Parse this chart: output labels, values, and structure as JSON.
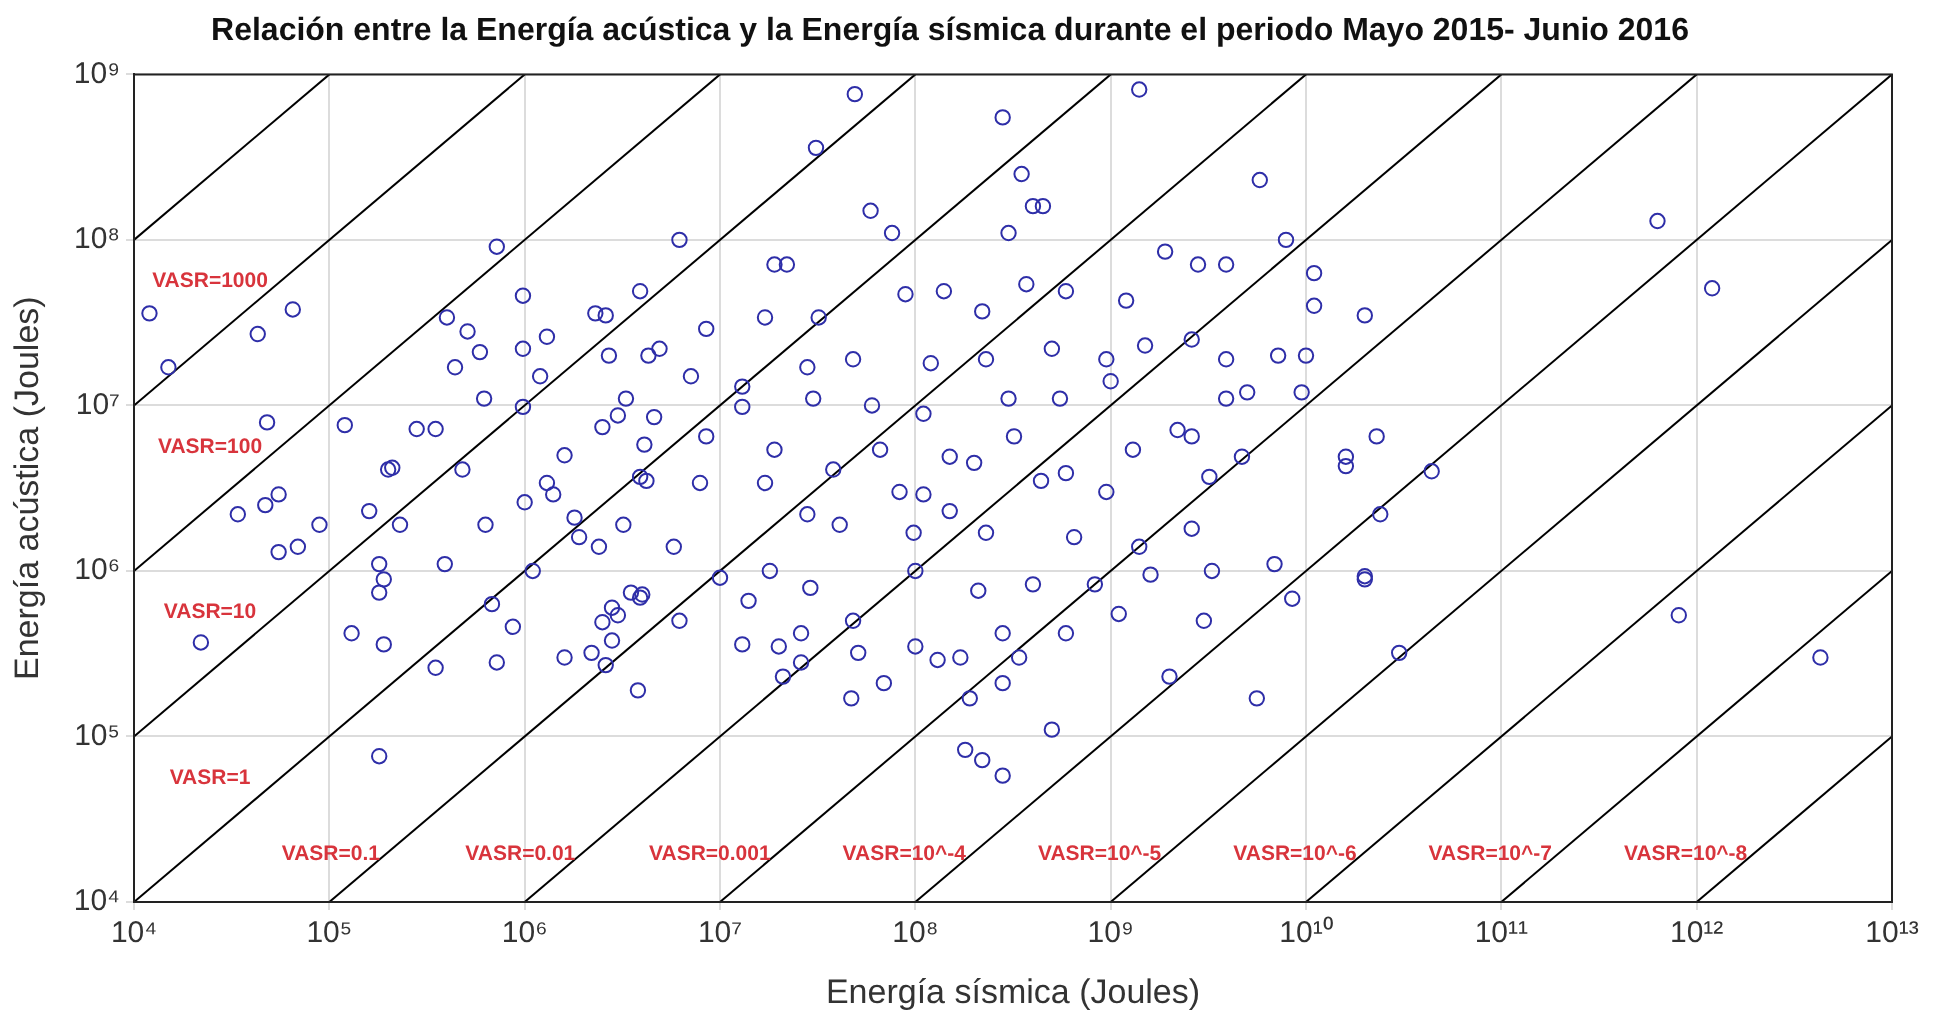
{
  "chart_data": {
    "type": "scatter",
    "title": "Relación entre la Energía acústica y la Energía sísmica durante el periodo Mayo 2015- Junio 2016",
    "xlabel": "Energía sísmica (Joules)",
    "ylabel": "Energía acústica (Joules)",
    "log": "xy",
    "grid": true,
    "xlim": [
      10000.0,
      10000000000000.0
    ],
    "ylim": [
      10000.0,
      1000000000.0
    ],
    "xticks": [
      {
        "value": 10000.0,
        "label": "10⁴"
      },
      {
        "value": 100000.0,
        "label": "10⁵"
      },
      {
        "value": 1000000.0,
        "label": "10⁶"
      },
      {
        "value": 10000000.0,
        "label": "10⁷"
      },
      {
        "value": 100000000.0,
        "label": "10⁸"
      },
      {
        "value": 1000000000.0,
        "label": "10⁹"
      },
      {
        "value": 10000000000.0,
        "label": "10¹⁰"
      },
      {
        "value": 100000000000.0,
        "label": "10¹¹"
      },
      {
        "value": 1000000000000.0,
        "label": "10¹²"
      },
      {
        "value": 10000000000000.0,
        "label": "10¹³"
      }
    ],
    "yticks": [
      {
        "value": 10000.0,
        "label": "10⁴"
      },
      {
        "value": 100000.0,
        "label": "10⁵"
      },
      {
        "value": 1000000.0,
        "label": "10⁶"
      },
      {
        "value": 10000000.0,
        "label": "10⁷"
      },
      {
        "value": 100000000.0,
        "label": "10⁸"
      },
      {
        "value": 1000000000.0,
        "label": "10⁹"
      }
    ],
    "series": [
      {
        "color": "#2e2ea8",
        "marker": "circle",
        "x": [
          12000.0,
          15000.0,
          43000.0,
          65000.0,
          48000.0,
          22000.0,
          34000.0,
          47000.0,
          55000.0,
          55000.0,
          69000.0,
          89000.0,
          120000.0,
          130000.0,
          160000.0,
          180000.0,
          180000.0,
          190000.0,
          180000.0,
          190000.0,
          200000.0,
          210000.0,
          230000.0,
          280000.0,
          350000.0,
          350000.0,
          390000.0,
          400000.0,
          440000.0,
          480000.0,
          510000.0,
          590000.0,
          620000.0,
          630000.0,
          680000.0,
          720000.0,
          720000.0,
          870000.0,
          980000.0,
          980000.0,
          980000.0,
          1000000.0,
          1100000.0,
          1200000.0,
          1300000.0,
          1300000.0,
          1400000.0,
          1600000.0,
          1600000.0,
          1800000.0,
          1900000.0,
          2200000.0,
          2300000.0,
          2400000.0,
          2500000.0,
          2500000.0,
          2600000.0,
          2600000.0,
          2700000.0,
          2800000.0,
          2800000.0,
          3000000.0,
          3000000.0,
          3300000.0,
          3500000.0,
          3200000.0,
          3800000.0,
          3900000.0,
          4000000.0,
          4100000.0,
          4200000.0,
          4300000.0,
          49000000.0,
          31000000.0,
          280000000.0,
          1400000000.0,
          350000000.0,
          5800000000.0,
          59000000.0,
          400000000.0,
          450000000.0,
          6200000.0,
          76000000.0,
          300000000.0,
          7900000000.0,
          19000000.0,
          22000000.0,
          32000000.0,
          17000000.0,
          8500000.0,
          89000000.0,
          140000000.0,
          220000000.0,
          370000000.0,
          590000000.0,
          1200000000.0,
          1900000000.0,
          2800000000.0,
          3900000000.0,
          4900000.0,
          7100000.0,
          13000000.0,
          28000000.0,
          48000000.0,
          120000000.0,
          230000000.0,
          500000000.0,
          950000000.0,
          1500000000.0,
          2600000000.0,
          3900000000.0,
          7200000000.0,
          4600000.0,
          13000000.0,
          30000000.0,
          60000000.0,
          110000000.0,
          300000000.0,
          550000000.0,
          1000000000.0,
          2200000000.0,
          3900000000.0,
          5000000000.0,
          3900000.0,
          8500000.0,
          19000000.0,
          38000000.0,
          66000000.0,
          150000000.0,
          320000000.0,
          590000000.0,
          1300000000.0,
          2600000000.0,
          4700000000.0,
          7900000.0,
          17000000.0,
          28000000.0,
          83000000.0,
          110000000.0,
          200000000.0,
          440000000.0,
          950000000.0,
          3200000000.0,
          5800000.0,
          10000000.0,
          18000000.0,
          41000000.0,
          98000000.0,
          150000000.0,
          230000000.0,
          650000000.0,
          1400000000.0,
          2600000000.0,
          3300000000.0,
          6900000000.0,
          3900000.0,
          6200000.0,
          14000000.0,
          29000000.0,
          48000000.0,
          100000000.0,
          210000000.0,
          400000000.0,
          830000000.0,
          1600000000.0,
          3000000000.0,
          13000000.0,
          20000000.0,
          26000000.0,
          51000000.0,
          100000000.0,
          130000000.0,
          170000000.0,
          280000000.0,
          340000000.0,
          590000000.0,
          1100000000.0,
          21000000.0,
          26000000.0,
          47000000.0,
          69000000.0,
          190000000.0,
          280000000.0,
          500000000.0,
          2000000000.0,
          5600000000.0,
          180000000.0,
          220000000.0,
          280000000.0,
          11000000000.0,
          11000000000.0,
          20000000000.0,
          10000000000.0,
          9500000000.0,
          23000000000.0,
          16000000000.0,
          16000000000.0,
          44000000000.0,
          24000000000.0,
          20000000000.0,
          20000000000.0,
          8500000000.0,
          30000000000.0,
          630000000000.0,
          1200000000000.0,
          810000000000.0,
          4300000000000.0
        ],
        "values": [
          36000000.0,
          17000000.0,
          27000000.0,
          38000000.0,
          7900000.0,
          370000.0,
          2200000.0,
          2500000.0,
          2900000.0,
          1300000.0,
          1400000.0,
          1900000.0,
          7600000.0,
          420000.0,
          2300000.0,
          76000.0,
          740000.0,
          890000.0,
          1100000.0,
          360000.0,
          4100000.0,
          4200000.0,
          1900000.0,
          7200000.0,
          7200000.0,
          260000.0,
          1100000.0,
          34000000.0,
          17000000.0,
          4100000.0,
          28000000.0,
          21000000.0,
          11000000.0,
          1900000.0,
          630000.0,
          91000000.0,
          280000.0,
          460000.0,
          46000000.0,
          22000000.0,
          9800000.0,
          2600000.0,
          1000000.0,
          15000000.0,
          26000000.0,
          3400000.0,
          2900000.0,
          5000000.0,
          300000.0,
          2100000.0,
          1600000.0,
          320000.0,
          36000000.0,
          1400000.0,
          7400000.0,
          490000.0,
          35000000.0,
          270000.0,
          20000000.0,
          380000.0,
          600000.0,
          540000.0,
          8700000.0,
          11000000.0,
          740000.0,
          1900000.0,
          190000.0,
          49000000.0,
          720000.0,
          5800000.0,
          3500000.0,
          20000000.0,
          760000000.0,
          360000000.0,
          550000000.0,
          810000000.0,
          250000000.0,
          230000000.0,
          150000000.0,
          160000000.0,
          160000000.0,
          100000000.0,
          110000000.0,
          110000000.0,
          100000000.0,
          71000000.0,
          71000000.0,
          34000000.0,
          34000000.0,
          29000000.0,
          47000000.0,
          49000000.0,
          37000000.0,
          54000000.0,
          49000000.0,
          43000000.0,
          85000000.0,
          71000000.0,
          71000000.0,
          22000000.0,
          15000000.0,
          13000000.0,
          17000000.0,
          19000000.0,
          18000000.0,
          19000000.0,
          22000000.0,
          19000000.0,
          23000000.0,
          25000000.0,
          19000000.0,
          20000000.0,
          8500000.0,
          9800000.0,
          11000000.0,
          10000000.0,
          8900000.0,
          11000000.0,
          11000000.0,
          14000000.0,
          7100000.0,
          11000000.0,
          12000000.0,
          3700000.0,
          6500000.0,
          5400000.0,
          4100000.0,
          5400000.0,
          4900000.0,
          6500000.0,
          3900000.0,
          5400000.0,
          6500000.0,
          4900000.0,
          3400000.0,
          3400000.0,
          2200000.0,
          3000000.0,
          2900000.0,
          4500000.0,
          3500000.0,
          3000000.0,
          3700000.0,
          1400000.0,
          910000.0,
          1000000.0,
          1900000.0,
          1700000.0,
          2300000.0,
          1700000.0,
          1600000.0,
          1400000.0,
          1800000.0,
          1000000.0,
          1100000.0,
          690000.0,
          500000.0,
          660000.0,
          790000.0,
          500000.0,
          1000000.0,
          760000.0,
          830000.0,
          830000.0,
          950000.0,
          500000.0,
          360000.0,
          350000.0,
          420000.0,
          320000.0,
          350000.0,
          290000.0,
          300000.0,
          420000.0,
          300000.0,
          420000.0,
          550000.0,
          230000.0,
          280000.0,
          170000.0,
          210000.0,
          170000.0,
          210000.0,
          110000.0,
          230000.0,
          170000.0,
          83000.0,
          72000.0,
          58000.0,
          63000000.0,
          40000000.0,
          35000000.0,
          20000000.0,
          12000000.0,
          6500000.0,
          4900000.0,
          4300000.0,
          4000000.0,
          2200000.0,
          930000.0,
          890000.0,
          680000.0,
          320000.0,
          130000000.0,
          51000000.0,
          540000.0,
          300000.0
        ]
      },
      {
        "type": "line",
        "color": "#000000",
        "marker": "none",
        "line_style": "solid",
        "x": [
          10000.0,
          100000.0
        ],
        "values": [
          100000000.0,
          1000000000.0
        ]
      },
      {
        "type": "line",
        "name": "VASR=1000",
        "color": "#000000",
        "marker": "none",
        "line_style": "solid",
        "x": [
          10000.0,
          1000000.0
        ],
        "values": [
          10000000.0,
          1000000000.0
        ]
      },
      {
        "type": "line",
        "name": "VASR=100",
        "color": "#000000",
        "marker": "none",
        "line_style": "solid",
        "x": [
          10000.0,
          10000000.0
        ],
        "values": [
          1000000.0,
          1000000000.0
        ]
      },
      {
        "type": "line",
        "name": "VASR=10",
        "color": "#000000",
        "marker": "none",
        "line_style": "solid",
        "x": [
          10000.0,
          100000000.0
        ],
        "values": [
          100000.0,
          1000000000.0
        ]
      },
      {
        "type": "line",
        "name": "VASR=1",
        "color": "#000000",
        "marker": "none",
        "line_style": "solid",
        "x": [
          10000.0,
          1000000000.0
        ],
        "values": [
          10000.0,
          1000000000.0
        ]
      },
      {
        "type": "line",
        "name": "VASR=0.1",
        "color": "#000000",
        "marker": "none",
        "line_style": "solid",
        "x": [
          100000.0,
          10000000000.0
        ],
        "values": [
          10000.0,
          1000000000.0
        ]
      },
      {
        "type": "line",
        "name": "VASR=0.01",
        "color": "#000000",
        "marker": "none",
        "line_style": "solid",
        "x": [
          1000000.0,
          100000000000.0
        ],
        "values": [
          10000.0,
          1000000000.0
        ]
      },
      {
        "type": "line",
        "name": "VASR=0.001",
        "color": "#000000",
        "marker": "none",
        "line_style": "solid",
        "x": [
          10000000.0,
          1000000000000.0
        ],
        "values": [
          10000.0,
          1000000000.0
        ]
      },
      {
        "type": "line",
        "name": "VASR=10^-4",
        "color": "#000000",
        "marker": "none",
        "line_style": "solid",
        "x": [
          100000000.0,
          10000000000000.0
        ],
        "values": [
          10000.0,
          1000000000.0
        ]
      },
      {
        "type": "line",
        "name": "VASR=10^-5",
        "color": "#000000",
        "marker": "none",
        "line_style": "solid",
        "x": [
          1000000000.0,
          10000000000000.0
        ],
        "values": [
          10000.0,
          100000000.0
        ]
      },
      {
        "type": "line",
        "name": "VASR=10^-6",
        "color": "#000000",
        "marker": "none",
        "line_style": "solid",
        "x": [
          10000000000.0,
          10000000000000.0
        ],
        "values": [
          10000.0,
          10000000.0
        ]
      },
      {
        "type": "line",
        "name": "VASR=10^-7",
        "color": "#000000",
        "marker": "none",
        "line_style": "solid",
        "x": [
          100000000000.0,
          10000000000000.0
        ],
        "values": [
          10000.0,
          1000000.0
        ]
      },
      {
        "type": "line",
        "name": "VASR=10^-8",
        "color": "#000000",
        "marker": "none",
        "line_style": "solid",
        "x": [
          1000000000000.0,
          10000000000000.0
        ],
        "values": [
          10000.0,
          100000.0
        ]
      }
    ]
  }
}
